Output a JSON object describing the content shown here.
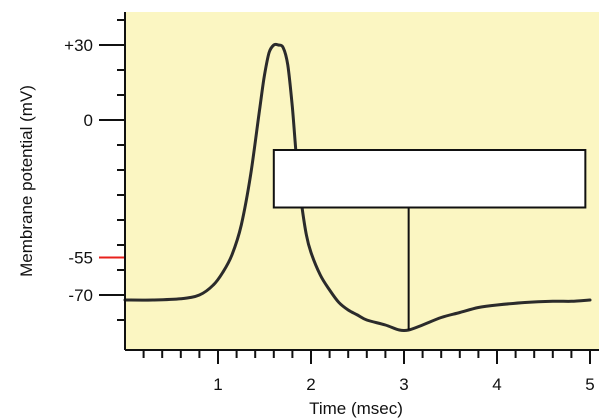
{
  "chart_data": {
    "type": "line",
    "title": "",
    "xlabel": "Time (msec)",
    "ylabel": "Membrane potential (mV)",
    "xlim": [
      0,
      5
    ],
    "ylim": [
      -87,
      45
    ],
    "x_ticks": [
      {
        "value": 1,
        "label": "1"
      },
      {
        "value": 2,
        "label": "2"
      },
      {
        "value": 3,
        "label": "3"
      },
      {
        "value": 4,
        "label": "4"
      },
      {
        "value": 5,
        "label": "5"
      }
    ],
    "x_minor_step": 0.2,
    "y_ticks": [
      {
        "value": 30,
        "label": "+30",
        "color": "#111111"
      },
      {
        "value": 0,
        "label": "0",
        "color": "#111111"
      },
      {
        "value": -55,
        "label": "-55",
        "color": "#e8211c"
      },
      {
        "value": -70,
        "label": "-70",
        "color": "#111111"
      }
    ],
    "y_minor_step": 10,
    "grid": false,
    "legend": "none",
    "colors": {
      "plot_background": "#fbf6c2",
      "line": "#2b2b2b",
      "axis": "#111111",
      "threshold": "#e8211c"
    },
    "series": [
      {
        "x": [
          0.0,
          0.3,
          0.6,
          0.8,
          0.95,
          1.05,
          1.15,
          1.25,
          1.35,
          1.45,
          1.5,
          1.55,
          1.6,
          1.65,
          1.7,
          1.75,
          1.8,
          1.85,
          1.9,
          1.95,
          2.0,
          2.1,
          2.2,
          2.3,
          2.4,
          2.5,
          2.6,
          2.8,
          2.95,
          3.05,
          3.2,
          3.4,
          3.6,
          3.8,
          4.0,
          4.3,
          4.6,
          4.8,
          5.0
        ],
        "y": [
          -72,
          -72,
          -71.5,
          -70,
          -66,
          -61,
          -54,
          -42,
          -22,
          5,
          18,
          27,
          30,
          30,
          29,
          22,
          5,
          -18,
          -34,
          -46,
          -53,
          -62,
          -68,
          -73,
          -76,
          -78,
          -80,
          -82,
          -84,
          -84,
          -82,
          -79,
          -77,
          -75,
          -74,
          -73,
          -72.5,
          -72.5,
          -72
        ]
      }
    ],
    "annotations": [
      {
        "type": "label-box",
        "text": "",
        "x0": 1.6,
        "x1": 4.95,
        "y_top": -12,
        "y_bottom": -35
      },
      {
        "type": "leader-line",
        "x": 3.05,
        "from_y": -35,
        "to_y": -84
      }
    ]
  }
}
